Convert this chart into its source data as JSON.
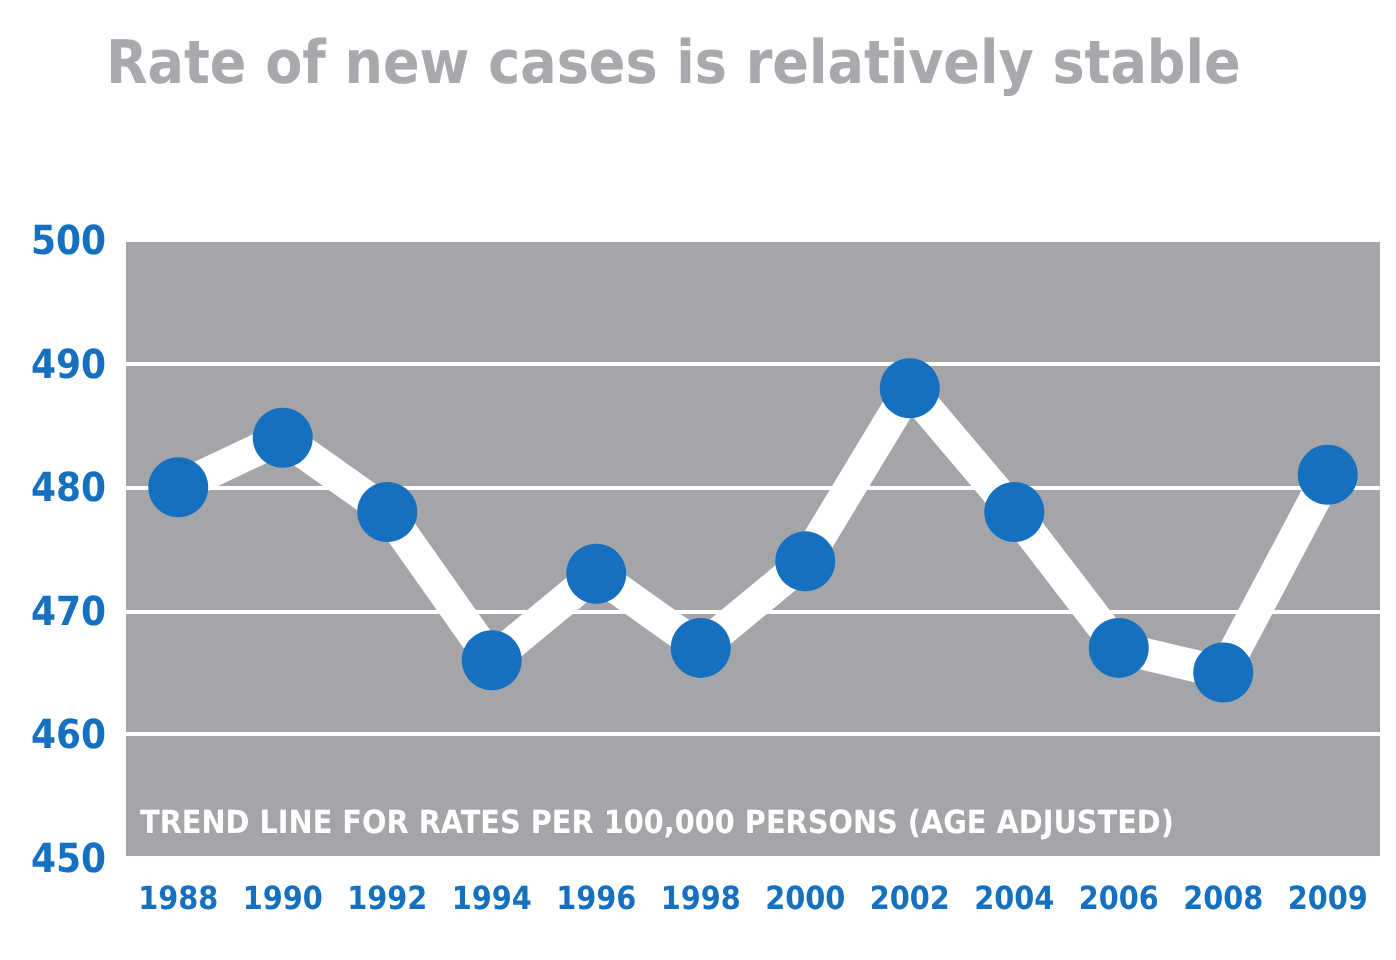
{
  "chart_data": {
    "type": "line",
    "title": "Rate of new cases is relatively stable",
    "categories": [
      "1988",
      "1990",
      "1992",
      "1994",
      "1996",
      "1998",
      "2000",
      "2002",
      "2004",
      "2006",
      "2008",
      "2009"
    ],
    "series": [
      {
        "color": "#1570c0",
        "values": [
          480,
          484,
          478,
          466,
          473,
          467,
          474,
          488,
          478,
          467,
          465,
          481
        ]
      }
    ],
    "ylim": [
      450,
      500
    ],
    "yticks": [
      450,
      460,
      470,
      480,
      490,
      500
    ],
    "grid": "y",
    "marker": "circle",
    "line_style": "solid",
    "annotations": [
      "TREND LINE FOR RATES PER 100,000 PERSONS (AGE ADJUSTED)"
    ]
  }
}
